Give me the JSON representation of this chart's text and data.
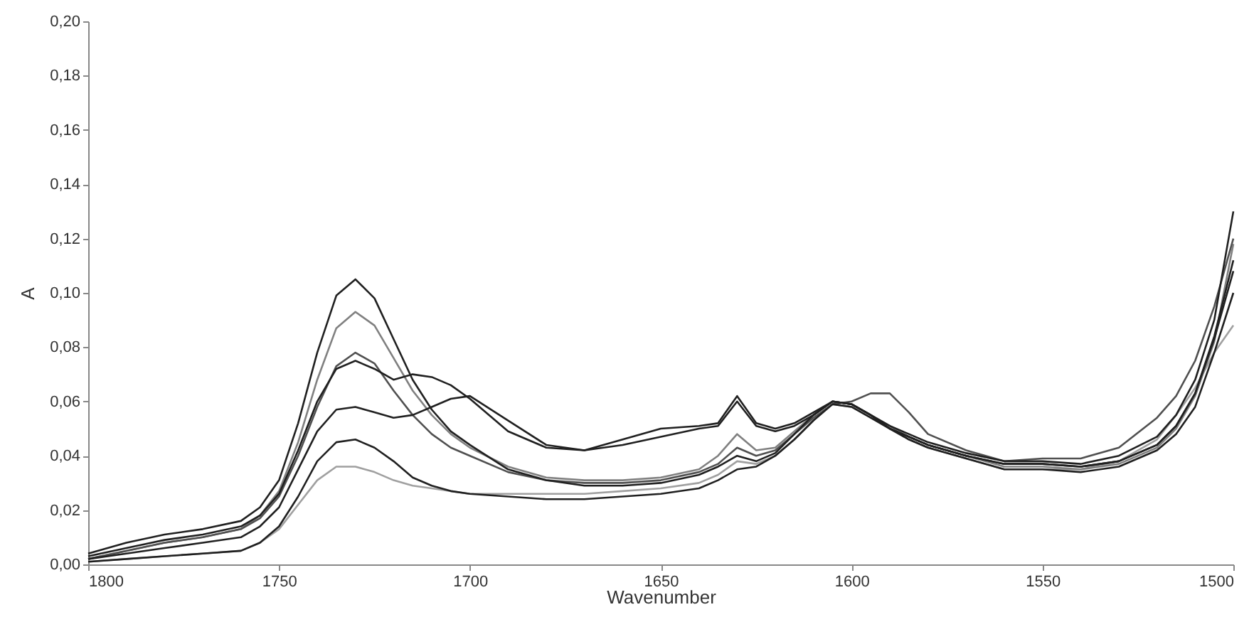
{
  "chart_data": {
    "type": "line",
    "xlabel": "Wavenumber",
    "ylabel": "A",
    "xlim": [
      1800,
      1500
    ],
    "xticks": [
      1800,
      1750,
      1700,
      1650,
      1600,
      1550,
      1500
    ],
    "ylim": [
      0,
      0.2
    ],
    "yticks": [
      {
        "value": 0,
        "label": "0,00"
      },
      {
        "value": 0.02,
        "label": "0,02"
      },
      {
        "value": 0.04,
        "label": "0,04"
      },
      {
        "value": 0.06,
        "label": "0,06"
      },
      {
        "value": 0.08,
        "label": "0,08"
      },
      {
        "value": 0.1,
        "label": "0,10"
      },
      {
        "value": 0.12,
        "label": "0,12"
      },
      {
        "value": 0.14,
        "label": "0,14"
      },
      {
        "value": 0.16,
        "label": "0,16"
      },
      {
        "value": 0.18,
        "label": "0,18"
      },
      {
        "value": 0.2,
        "label": "0,20"
      }
    ],
    "grid": false,
    "x": [
      1800,
      1790,
      1780,
      1770,
      1760,
      1755,
      1750,
      1745,
      1740,
      1735,
      1730,
      1725,
      1720,
      1715,
      1710,
      1705,
      1700,
      1690,
      1680,
      1670,
      1660,
      1650,
      1640,
      1635,
      1630,
      1625,
      1620,
      1615,
      1610,
      1605,
      1600,
      1595,
      1590,
      1585,
      1580,
      1570,
      1560,
      1550,
      1540,
      1530,
      1520,
      1515,
      1510,
      1505,
      1500
    ],
    "series": [
      {
        "color": "#a0a0a0",
        "values": [
          0.001,
          0.002,
          0.003,
          0.004,
          0.005,
          0.008,
          0.013,
          0.022,
          0.031,
          0.036,
          0.036,
          0.034,
          0.031,
          0.029,
          0.028,
          0.027,
          0.026,
          0.026,
          0.026,
          0.026,
          0.027,
          0.028,
          0.03,
          0.033,
          0.038,
          0.037,
          0.04,
          0.046,
          0.053,
          0.059,
          0.058,
          0.054,
          0.05,
          0.046,
          0.043,
          0.039,
          0.035,
          0.035,
          0.035,
          0.038,
          0.046,
          0.055,
          0.065,
          0.078,
          0.088
        ]
      },
      {
        "color": "#808080",
        "values": [
          0.002,
          0.005,
          0.008,
          0.01,
          0.013,
          0.018,
          0.027,
          0.045,
          0.068,
          0.087,
          0.093,
          0.088,
          0.076,
          0.064,
          0.055,
          0.048,
          0.043,
          0.036,
          0.032,
          0.031,
          0.031,
          0.032,
          0.035,
          0.04,
          0.048,
          0.042,
          0.043,
          0.049,
          0.055,
          0.06,
          0.059,
          0.055,
          0.051,
          0.047,
          0.044,
          0.04,
          0.036,
          0.036,
          0.035,
          0.037,
          0.043,
          0.05,
          0.062,
          0.082,
          0.118
        ]
      },
      {
        "color": "#505050",
        "values": [
          0.002,
          0.005,
          0.008,
          0.01,
          0.013,
          0.017,
          0.025,
          0.04,
          0.058,
          0.073,
          0.078,
          0.074,
          0.064,
          0.055,
          0.048,
          0.043,
          0.04,
          0.034,
          0.031,
          0.03,
          0.03,
          0.031,
          0.034,
          0.037,
          0.043,
          0.04,
          0.042,
          0.048,
          0.054,
          0.059,
          0.06,
          0.063,
          0.063,
          0.056,
          0.048,
          0.042,
          0.038,
          0.039,
          0.039,
          0.043,
          0.054,
          0.062,
          0.075,
          0.095,
          0.12
        ]
      },
      {
        "color": "#202020",
        "values": [
          0.004,
          0.008,
          0.011,
          0.013,
          0.016,
          0.021,
          0.031,
          0.052,
          0.078,
          0.099,
          0.105,
          0.098,
          0.083,
          0.068,
          0.057,
          0.049,
          0.044,
          0.035,
          0.031,
          0.029,
          0.029,
          0.03,
          0.033,
          0.036,
          0.04,
          0.038,
          0.041,
          0.048,
          0.055,
          0.06,
          0.059,
          0.055,
          0.051,
          0.048,
          0.045,
          0.041,
          0.038,
          0.038,
          0.037,
          0.04,
          0.047,
          0.055,
          0.068,
          0.09,
          0.13
        ]
      },
      {
        "color": "#202020",
        "values": [
          0.003,
          0.006,
          0.009,
          0.011,
          0.014,
          0.018,
          0.026,
          0.042,
          0.06,
          0.072,
          0.075,
          0.072,
          0.068,
          0.07,
          0.069,
          0.066,
          0.061,
          0.049,
          0.043,
          0.042,
          0.046,
          0.05,
          0.051,
          0.052,
          0.062,
          0.052,
          0.05,
          0.052,
          0.056,
          0.06,
          0.059,
          0.055,
          0.05,
          0.047,
          0.044,
          0.04,
          0.037,
          0.037,
          0.036,
          0.038,
          0.044,
          0.051,
          0.063,
          0.084,
          0.112
        ]
      },
      {
        "color": "#202020",
        "values": [
          0.001,
          0.002,
          0.003,
          0.004,
          0.005,
          0.008,
          0.014,
          0.025,
          0.038,
          0.045,
          0.046,
          0.043,
          0.038,
          0.032,
          0.029,
          0.027,
          0.026,
          0.025,
          0.024,
          0.024,
          0.025,
          0.026,
          0.028,
          0.031,
          0.035,
          0.036,
          0.04,
          0.046,
          0.053,
          0.059,
          0.058,
          0.054,
          0.05,
          0.046,
          0.043,
          0.039,
          0.035,
          0.035,
          0.034,
          0.036,
          0.042,
          0.048,
          0.058,
          0.078,
          0.1
        ]
      },
      {
        "color": "#202020",
        "values": [
          0.002,
          0.004,
          0.006,
          0.008,
          0.01,
          0.014,
          0.021,
          0.035,
          0.049,
          0.057,
          0.058,
          0.056,
          0.054,
          0.055,
          0.058,
          0.061,
          0.062,
          0.053,
          0.044,
          0.042,
          0.044,
          0.047,
          0.05,
          0.051,
          0.06,
          0.051,
          0.049,
          0.051,
          0.055,
          0.06,
          0.059,
          0.055,
          0.05,
          0.047,
          0.044,
          0.04,
          0.037,
          0.037,
          0.036,
          0.038,
          0.044,
          0.051,
          0.063,
          0.083,
          0.108
        ]
      }
    ]
  }
}
